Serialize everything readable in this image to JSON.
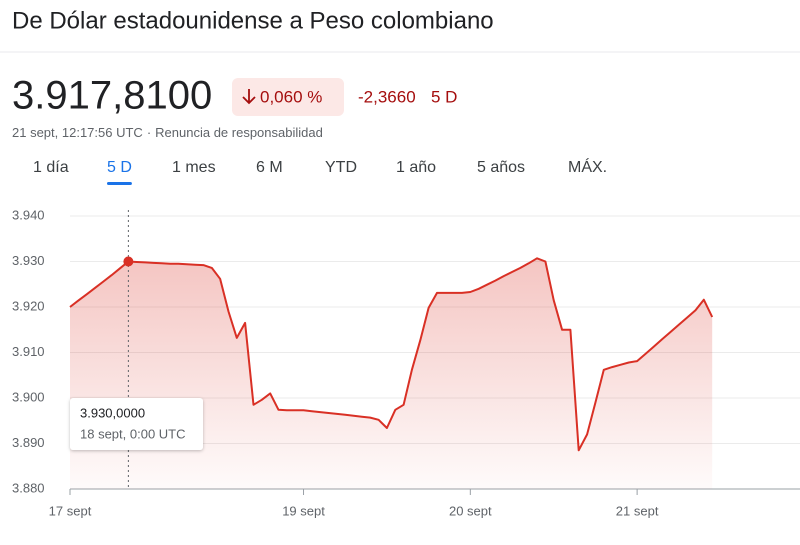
{
  "header": {
    "title": "De Dólar estadounidense a Peso colombiano",
    "price": "3.917,8100",
    "change_percent": "0,060 %",
    "change_value": "-2,3660",
    "change_period": "5 D",
    "timestamp": "21 sept, 12:17:56 UTC",
    "disclaimer": "Renuncia de responsabilidad"
  },
  "tabs": {
    "items": [
      "1 día",
      "5 D",
      "1 mes",
      "6 M",
      "YTD",
      "1 año",
      "5 años",
      "MÁX."
    ],
    "selected": 1
  },
  "chart_data": {
    "type": "area-line",
    "color": "#d93025",
    "categories": [
      "17 sept",
      null,
      null,
      null,
      null,
      null,
      null,
      null,
      null,
      null,
      null,
      null,
      null,
      null,
      null,
      null,
      null,
      null,
      null,
      null,
      null,
      null,
      null,
      null,
      null,
      null,
      null,
      null,
      "19 sept",
      null,
      null,
      null,
      null,
      null,
      null,
      null,
      null,
      null,
      null,
      null,
      null,
      null,
      null,
      null,
      null,
      null,
      null,
      null,
      "20 sept",
      null,
      null,
      null,
      null,
      null,
      null,
      null,
      null,
      null,
      null,
      null,
      null,
      null,
      null,
      null,
      null,
      null,
      null,
      null,
      "21 sept",
      null,
      null,
      null,
      null,
      null,
      null,
      null,
      null,
      null
    ],
    "values": [
      3920,
      3921.4,
      3922.8,
      3924.2,
      3925.6,
      3927,
      3928.5,
      3930,
      3929.9,
      3929.8,
      3929.7,
      3929.6,
      3929.5,
      3929.5,
      3929.4,
      3929.3,
      3929.2,
      3928.6,
      3926.2,
      3919,
      3913.2,
      3916.5,
      3898.5,
      3899.6,
      3901,
      3897.4,
      3897.3,
      3897.3,
      3897.3,
      3897.1,
      3896.9,
      3896.7,
      3896.5,
      3896.3,
      3896.1,
      3895.9,
      3895.7,
      3895.2,
      3893.4,
      3897.4,
      3898.5,
      3906.2,
      3912.7,
      3919.8,
      3923.1,
      3923.1,
      3923.1,
      3923.1,
      3923.3,
      3924,
      3924.9,
      3925.8,
      3926.8,
      3927.7,
      3928.6,
      3929.6,
      3930.7,
      3930,
      3921.5,
      3915,
      3915,
      3888.5,
      3892,
      3899,
      3906.2,
      3906.8,
      3907.3,
      3907.8,
      3908.1,
      3909.7,
      3911.3,
      3912.9,
      3914.5,
      3916.1,
      3917.7,
      3919.3,
      3921.6,
      3917.8
    ],
    "ylim": [
      3880,
      3940
    ],
    "yticks": [
      {
        "value": 3880,
        "label": "3.880"
      },
      {
        "value": 3890,
        "label": "3.890"
      },
      {
        "value": 3900,
        "label": "3.900"
      },
      {
        "value": 3910,
        "label": "3.910"
      },
      {
        "value": 3920,
        "label": "3.920"
      },
      {
        "value": 3930,
        "label": "3.930"
      },
      {
        "value": 3940,
        "label": "3.940"
      }
    ],
    "grid": true,
    "tooltip": {
      "index": 7,
      "value_label": "3.930,0000",
      "date": "18 sept, 0:00 UTC"
    }
  }
}
